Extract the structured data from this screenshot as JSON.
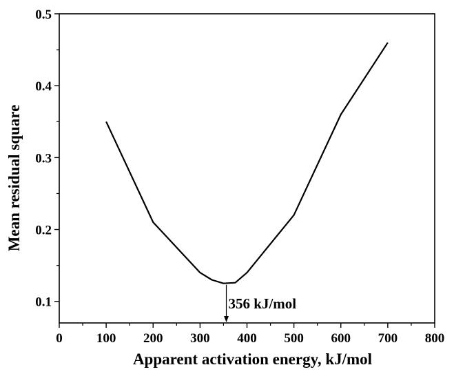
{
  "chart_data": {
    "type": "line",
    "title": "",
    "xlabel": "Apparent activation energy, kJ/mol",
    "ylabel": "Mean residual square",
    "xlim": [
      0,
      800
    ],
    "ylim": [
      0.07,
      0.5
    ],
    "xticks": [
      0,
      100,
      200,
      300,
      400,
      500,
      600,
      700,
      800
    ],
    "xtick_labels": [
      "0",
      "100",
      "200",
      "300",
      "400",
      "500",
      "600",
      "700",
      "800"
    ],
    "yticks": [
      0.1,
      0.2,
      0.3,
      0.4,
      0.5
    ],
    "ytick_labels": [
      "0.1",
      "0.2",
      "0.3",
      "0.4",
      "0.5"
    ],
    "grid": false,
    "legend": "none",
    "line_color": "#000000",
    "series": [
      {
        "x": [
          100,
          200,
          300,
          325,
          350,
          375,
          400,
          500,
          600,
          700
        ],
        "y": [
          0.35,
          0.21,
          0.14,
          0.13,
          0.125,
          0.126,
          0.14,
          0.22,
          0.36,
          0.46
        ]
      }
    ],
    "annotation": {
      "text": "356 kJ/mol",
      "x": 356,
      "y": 0.125
    }
  }
}
